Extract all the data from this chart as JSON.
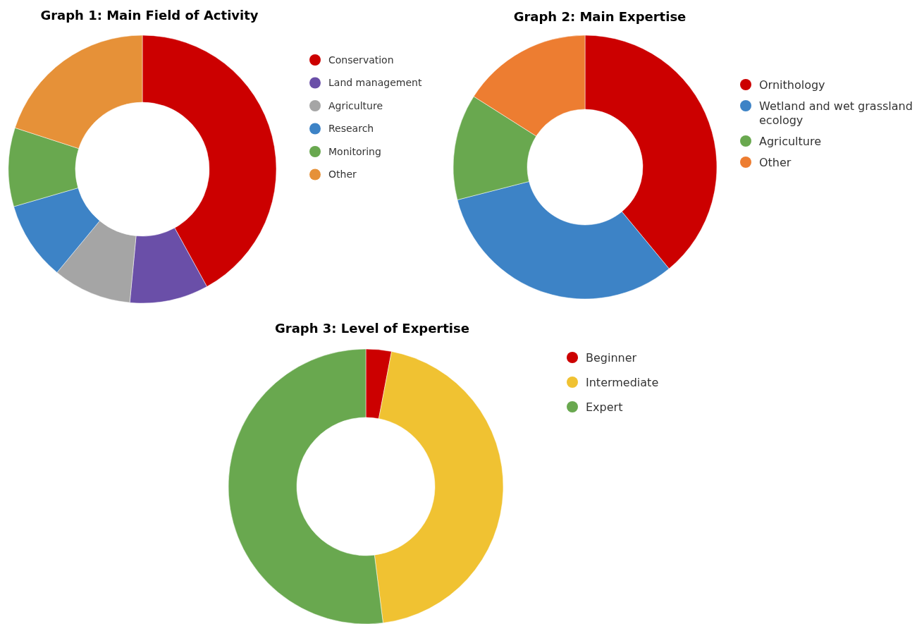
{
  "chart_data": [
    {
      "type": "donut",
      "title": "Graph 1: Main Field of Activity",
      "categories": [
        "Conservation",
        "Land management",
        "Agriculture",
        "Research",
        "Monitoring",
        "Other"
      ],
      "values": [
        42,
        9.5,
        9.5,
        9.5,
        9.5,
        20
      ],
      "colors": [
        "#cc0000",
        "#6a4fa8",
        "#a5a5a5",
        "#3d83c6",
        "#69a84f",
        "#e69138"
      ],
      "legend": "right"
    },
    {
      "type": "donut",
      "title": "Graph 2: Main Expertise",
      "categories": [
        "Ornithology",
        "Wetland and wet grassland ecology",
        "Agriculture",
        "Other"
      ],
      "values": [
        39,
        32,
        13,
        16
      ],
      "colors": [
        "#cc0000",
        "#3d83c6",
        "#69a84f",
        "#ed7d31"
      ],
      "legend": "right"
    },
    {
      "type": "donut",
      "title": "Graph 3: Level of Expertise",
      "categories": [
        "Beginner",
        "Intermediate",
        "Expert"
      ],
      "values": [
        3,
        45,
        52
      ],
      "colors": [
        "#cc0000",
        "#f0c232",
        "#69a84f"
      ],
      "legend": "right"
    }
  ]
}
